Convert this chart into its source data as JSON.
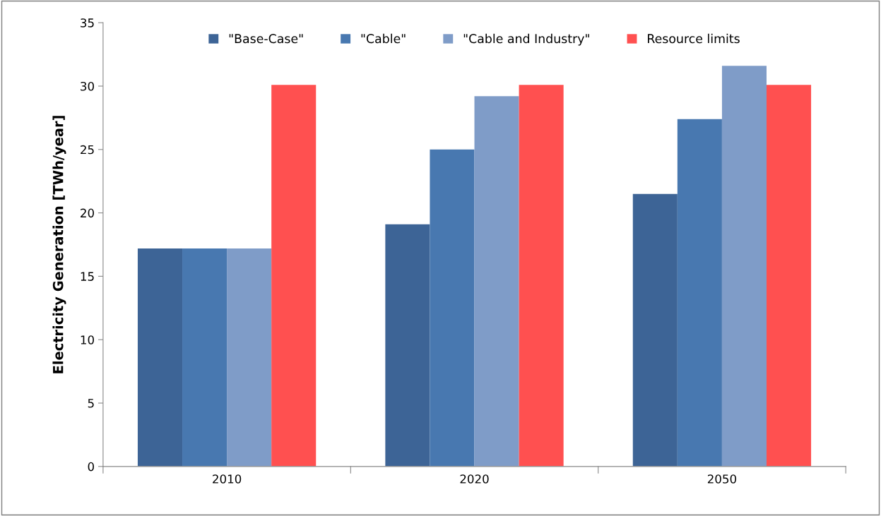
{
  "chart_data": {
    "type": "bar",
    "ylabel": "Electricity Generation [TWh/year]",
    "categories": [
      "2010",
      "2020",
      "2050"
    ],
    "series": [
      {
        "name": "\"Base-Case\"",
        "color": "#3d6496",
        "values": [
          17.2,
          19.1,
          21.5
        ]
      },
      {
        "name": "\"Cable\"",
        "color": "#4878b0",
        "values": [
          17.2,
          25.0,
          27.4
        ]
      },
      {
        "name": "\"Cable and Industry\"",
        "color": "#7f9cc8",
        "values": [
          17.2,
          29.2,
          31.6
        ]
      },
      {
        "name": "Resource limits",
        "color": "#ff5050",
        "values": [
          30.1,
          30.1,
          30.1
        ]
      }
    ],
    "ylim": [
      0,
      35
    ],
    "yticks": [
      0,
      5,
      10,
      15,
      20,
      25,
      30,
      35
    ],
    "grid": false,
    "legend": "top"
  }
}
